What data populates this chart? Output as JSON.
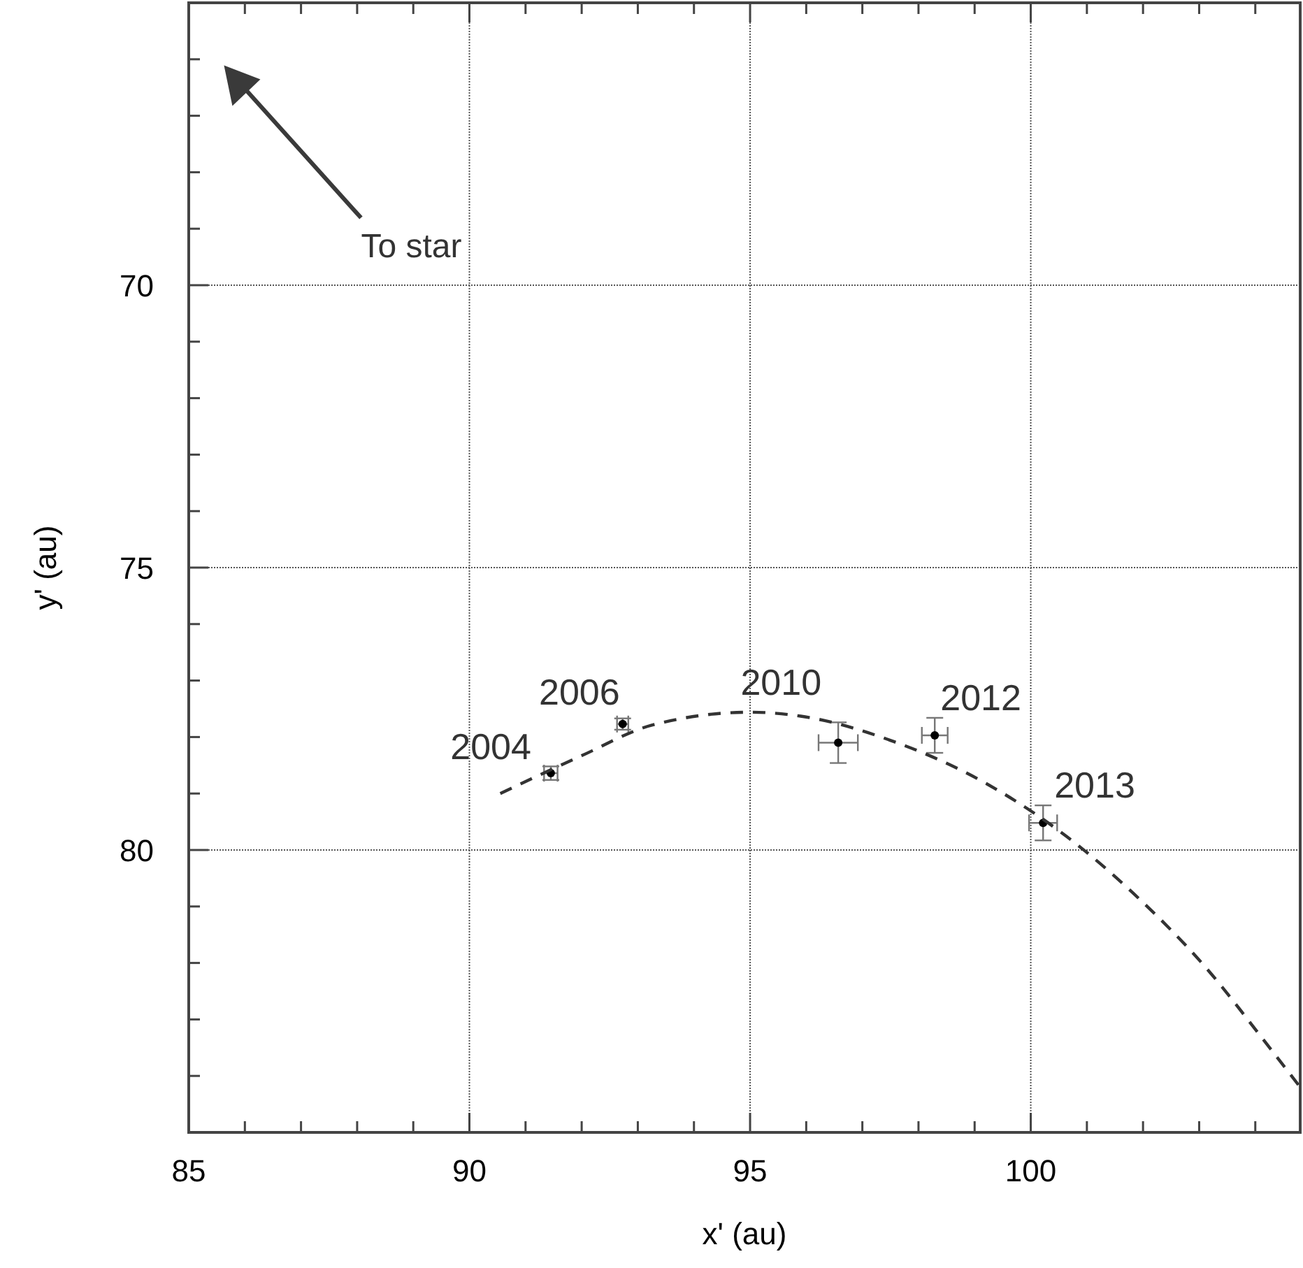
{
  "chart_data": {
    "type": "scatter",
    "xlabel": "x' (au)",
    "ylabel": "y' (au)",
    "xlim": [
      85,
      104.8
    ],
    "ylim": [
      85,
      65
    ],
    "xticks": [
      85,
      {
        "value": 86,
        "label": null
      },
      {
        "value": 87,
        "label": null
      },
      {
        "value": 88,
        "label": null
      },
      {
        "value": 89,
        "label": null
      },
      90,
      {
        "value": 91,
        "label": null
      },
      {
        "value": 92,
        "label": null
      },
      {
        "value": 93,
        "label": null
      },
      {
        "value": 94,
        "label": null
      },
      95,
      {
        "value": 96,
        "label": null
      },
      {
        "value": 97,
        "label": null
      },
      {
        "value": 98,
        "label": null
      },
      {
        "value": 99,
        "label": null
      },
      100,
      {
        "value": 101,
        "label": null
      },
      {
        "value": 102,
        "label": null
      },
      {
        "value": 103,
        "label": null
      },
      {
        "value": 104,
        "label": null
      }
    ],
    "yticks": [
      {
        "value": 66,
        "label": null
      },
      {
        "value": 67,
        "label": null
      },
      {
        "value": 68,
        "label": null
      },
      {
        "value": 69,
        "label": null
      },
      70,
      {
        "value": 71,
        "label": null
      },
      {
        "value": 72,
        "label": null
      },
      {
        "value": 73,
        "label": null
      },
      {
        "value": 74,
        "label": null
      },
      75,
      {
        "value": 76,
        "label": null
      },
      {
        "value": 77,
        "label": null
      },
      {
        "value": 78,
        "label": null
      },
      {
        "value": 79,
        "label": null
      },
      80,
      {
        "value": 81,
        "label": null
      },
      {
        "value": 82,
        "label": null
      },
      {
        "value": 83,
        "label": null
      },
      {
        "value": 84,
        "label": null
      }
    ],
    "grid": true,
    "series": [
      {
        "type": "scatter",
        "color": "#000000",
        "marker": "circle",
        "x": [
          91.45,
          92.73,
          96.57,
          98.29,
          100.22
        ],
        "values": [
          78.64,
          77.77,
          78.1,
          77.97,
          79.52
        ],
        "errors": [
          0.12,
          0.1,
          0.36,
          0.31,
          0.31
        ],
        "xerrors": [
          0.12,
          0.1,
          0.35,
          0.23,
          0.25
        ]
      },
      {
        "type": "line",
        "color": "#333333",
        "marker": "none",
        "line_style": "dashed",
        "x": [
          90.55,
          92.0,
          93.25,
          95.0,
          95.9,
          97.56,
          99.22,
          100.97,
          101.83,
          103.1,
          104.2,
          104.8
        ],
        "values": [
          79.0,
          78.33,
          77.79,
          77.56,
          77.63,
          78.08,
          78.83,
          80.02,
          80.77,
          82.06,
          83.43,
          84.2
        ]
      }
    ],
    "annotations": [
      {
        "text": "2004",
        "x": 91.45,
        "y": 78.64
      },
      {
        "text": "2006",
        "x": 92.73,
        "y": 77.77
      },
      {
        "text": "2010",
        "x": 96.57,
        "y": 78.1
      },
      {
        "text": "2012",
        "x": 98.29,
        "y": 77.97
      },
      {
        "text": "2013",
        "x": 100.22,
        "y": 79.52
      },
      "To star"
    ]
  }
}
